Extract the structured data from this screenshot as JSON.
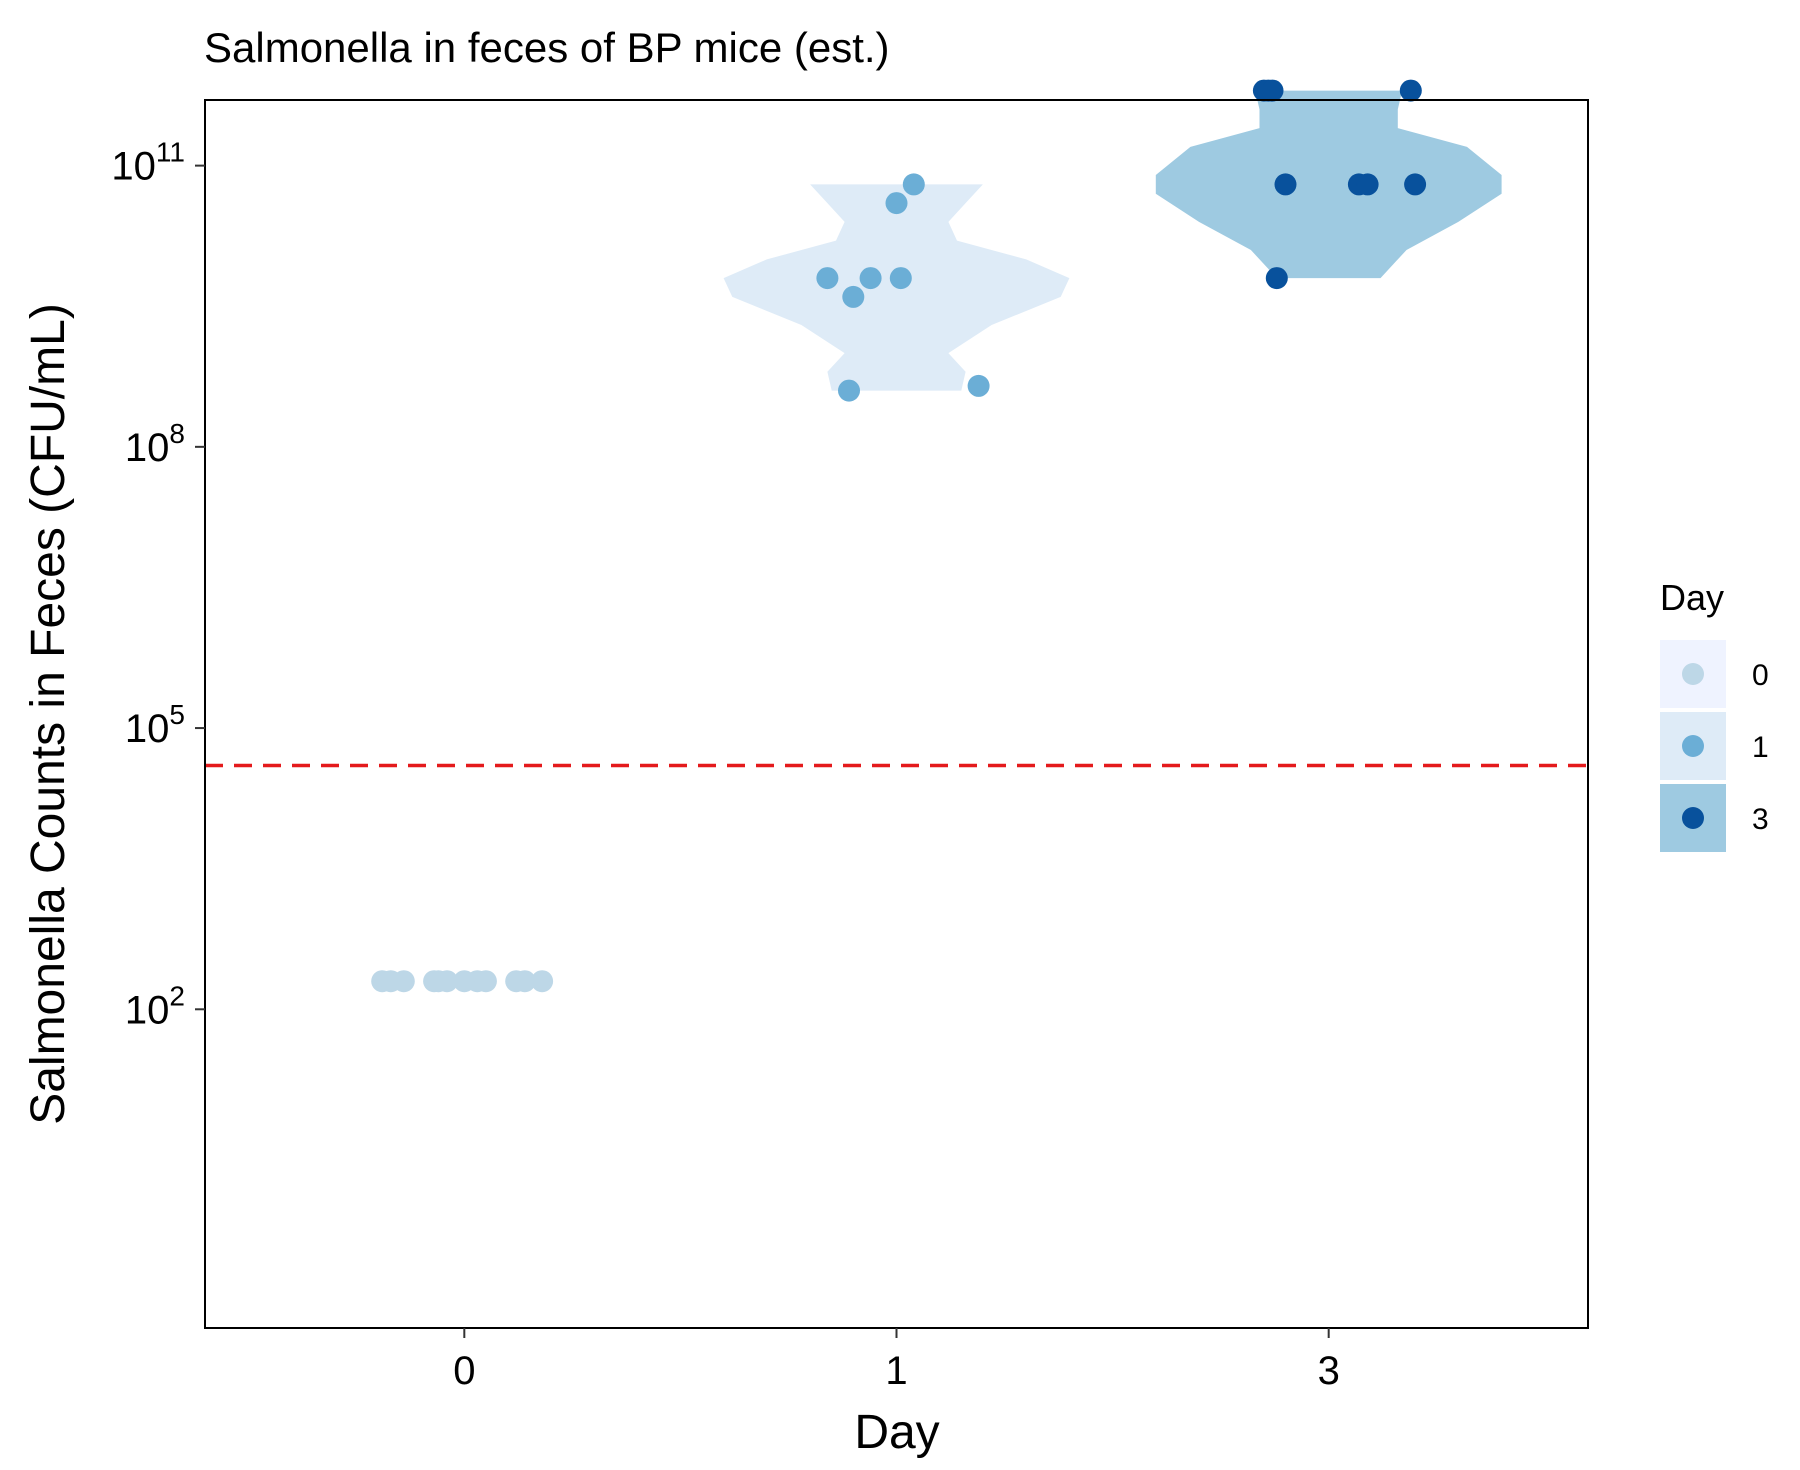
{
  "chart_data": {
    "type": "violin",
    "title": "Salmonella in feces of BP mice (est.)",
    "xlabel": "Day",
    "ylabel": "Salmonella Counts in Feces (CFU/mL)",
    "categories": [
      "0",
      "1",
      "3"
    ],
    "y_scale": "log10",
    "ylim_log10": [
      -1.4,
      11.7
    ],
    "y_ticks": [
      {
        "base": "10",
        "exp": "2",
        "log10": 2
      },
      {
        "base": "10",
        "exp": "5",
        "log10": 5
      },
      {
        "base": "10",
        "exp": "8",
        "log10": 8
      },
      {
        "base": "10",
        "exp": "11",
        "log10": 11
      }
    ],
    "threshold_log10": 4.6,
    "threshold_color": "#e41a1c",
    "legend": {
      "title": "Day",
      "position": "right",
      "entries": [
        "0",
        "1",
        "3"
      ]
    },
    "colors": {
      "0": {
        "point": "#bdd7e7",
        "violin": "#eff3ff"
      },
      "1": {
        "point": "#6baed6",
        "violin": "#deebf7"
      },
      "3": {
        "point": "#08519c",
        "violin": "#9ecae1"
      }
    },
    "series": [
      {
        "day": "0",
        "values_log10": [
          2.3,
          2.3,
          2.3,
          2.3,
          2.3,
          2.3,
          2.3,
          2.3,
          2.3,
          2.3,
          2.3,
          2.3
        ],
        "jitter": [
          -0.19,
          -0.17,
          -0.14,
          -0.07,
          -0.06,
          -0.04,
          0.0,
          0.03,
          0.05,
          0.12,
          0.14,
          0.18
        ],
        "violin": null
      },
      {
        "day": "1",
        "values_log10": [
          10.8,
          10.6,
          9.8,
          9.8,
          9.8,
          9.6,
          8.65,
          8.6
        ],
        "jitter": [
          0.04,
          0.0,
          -0.16,
          -0.06,
          0.01,
          -0.1,
          0.19,
          -0.11
        ],
        "violin": {
          "min_log10": 8.6,
          "max_log10": 10.8,
          "profile": [
            [
              8.6,
              0.15
            ],
            [
              8.8,
              0.16
            ],
            [
              9.0,
              0.12
            ],
            [
              9.3,
              0.22
            ],
            [
              9.6,
              0.38
            ],
            [
              9.8,
              0.4
            ],
            [
              10.0,
              0.3
            ],
            [
              10.2,
              0.14
            ],
            [
              10.4,
              0.12
            ],
            [
              10.6,
              0.16
            ],
            [
              10.8,
              0.2
            ]
          ]
        }
      },
      {
        "day": "3",
        "values_log10": [
          11.8,
          11.8,
          11.8,
          11.8,
          10.8,
          10.8,
          10.8,
          10.8,
          9.8
        ],
        "jitter": [
          -0.15,
          -0.14,
          -0.13,
          0.19,
          -0.1,
          0.07,
          0.09,
          0.2,
          -0.12
        ],
        "violin": {
          "min_log10": 9.8,
          "max_log10": 11.8,
          "profile": [
            [
              9.8,
              0.12
            ],
            [
              10.1,
              0.18
            ],
            [
              10.4,
              0.3
            ],
            [
              10.7,
              0.4
            ],
            [
              10.9,
              0.4
            ],
            [
              11.2,
              0.32
            ],
            [
              11.4,
              0.16
            ],
            [
              11.6,
              0.16
            ],
            [
              11.8,
              0.17
            ]
          ]
        }
      }
    ]
  }
}
